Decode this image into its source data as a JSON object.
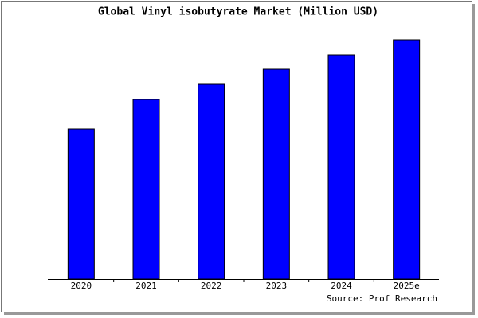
{
  "chart_data": {
    "type": "bar",
    "title": "Global Vinyl isobutyrate Market (Million USD)",
    "categories": [
      "2020",
      "2021",
      "2022",
      "2023",
      "2024",
      "2025e"
    ],
    "values": [
      189,
      226,
      245,
      264,
      282,
      301
    ],
    "color": "#0000ff",
    "ylim": [
      0,
      301
    ],
    "source": "Source: Prof Research"
  }
}
